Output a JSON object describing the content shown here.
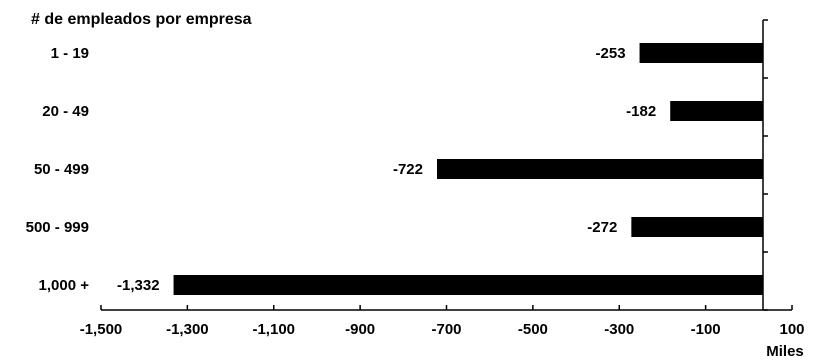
{
  "chart_data": {
    "type": "bar",
    "orientation": "horizontal",
    "title": "# de empleados por empresa",
    "xlabel": "Miles",
    "ylabel": "",
    "categories": [
      "1 - 19",
      "20 - 49",
      "50 - 499",
      "500 - 999",
      "1,000 +"
    ],
    "values": [
      -253,
      -182,
      -722,
      -272,
      -1332
    ],
    "value_labels": [
      "-253",
      "-182",
      "-722",
      "-272",
      "-1,332"
    ],
    "xlim": [
      -1500,
      100
    ],
    "x_ticks": [
      -1500,
      -1300,
      -1100,
      -900,
      -700,
      -500,
      -300,
      -100,
      100
    ],
    "x_tick_labels": [
      "-1,500",
      "-1,300",
      "-1,100",
      "-900",
      "-700",
      "-500",
      "-300",
      "-100",
      "100"
    ],
    "grid": false,
    "bar_color": "#000000"
  }
}
